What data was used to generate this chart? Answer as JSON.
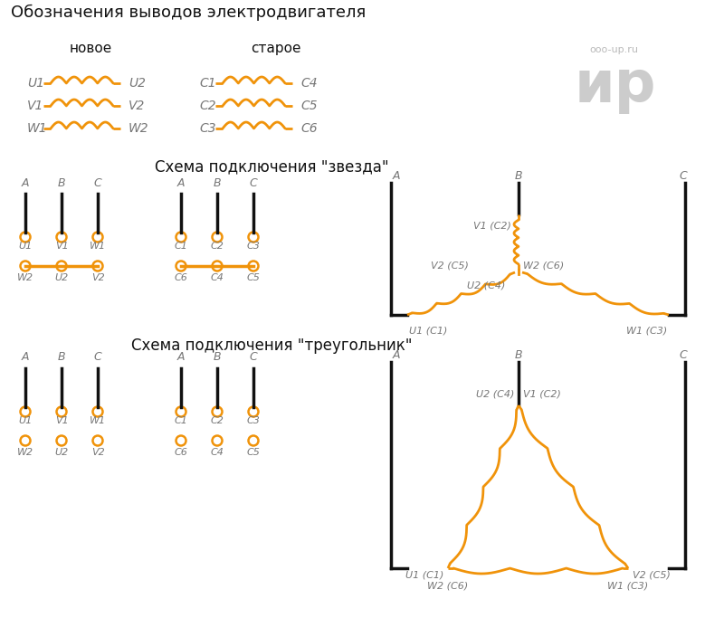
{
  "title": "Обозначения выводов электродвигателя",
  "subtitle_new": "новое",
  "subtitle_old": "старое",
  "orange": "#F0930A",
  "black": "#111111",
  "gray": "#777777",
  "lightgray": "#bbbbbb",
  "bg": "#ffffff",
  "legend_rows": [
    {
      "left_label": "U1",
      "right_label": "U2",
      "old_left": "C1",
      "old_right": "C4"
    },
    {
      "left_label": "V1",
      "right_label": "V2",
      "old_left": "C2",
      "old_right": "C5"
    },
    {
      "left_label": "W1",
      "right_label": "W2",
      "old_left": "C3",
      "old_right": "C6"
    }
  ],
  "star_title": "Схема подключения \"звезда\"",
  "tri_title": "Схема подключения \"треугольник\""
}
